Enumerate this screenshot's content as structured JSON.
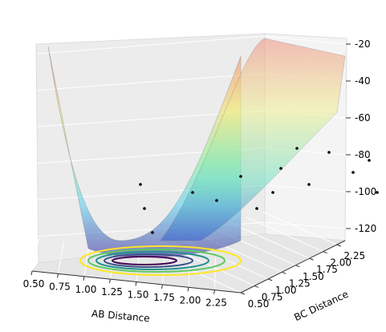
{
  "chart_data": {
    "type": "surface3d",
    "xlabel": "AB Distance",
    "ylabel": "BC Distance",
    "xlim": [
      0.5,
      2.5
    ],
    "ylim": [
      0.5,
      2.4
    ],
    "zlim": [
      -130,
      -20
    ],
    "xticks": [
      {
        "value": 0.5,
        "label": "0.50"
      },
      {
        "value": 0.75,
        "label": "0.75"
      },
      {
        "value": 1.0,
        "label": "1.00"
      },
      {
        "value": 1.25,
        "label": "1.25"
      },
      {
        "value": 1.5,
        "label": "1.50"
      },
      {
        "value": 1.75,
        "label": "1.75"
      },
      {
        "value": 2.0,
        "label": "2.00"
      },
      {
        "value": 2.25,
        "label": "2.25"
      }
    ],
    "yticks": [
      {
        "value": 0.5,
        "label": "0.50"
      },
      {
        "value": 0.75,
        "label": "0.75"
      },
      {
        "value": 1.0,
        "label": "1.00"
      },
      {
        "value": 1.25,
        "label": "1.25"
      },
      {
        "value": 1.5,
        "label": "1.50"
      },
      {
        "value": 1.75,
        "label": "1.75"
      },
      {
        "value": 2.0,
        "label": "2.00"
      },
      {
        "value": 2.25,
        "label": "2.25"
      }
    ],
    "zticks": [
      -20,
      -40,
      -60,
      -80,
      -100,
      -120
    ],
    "grid": true
  }
}
